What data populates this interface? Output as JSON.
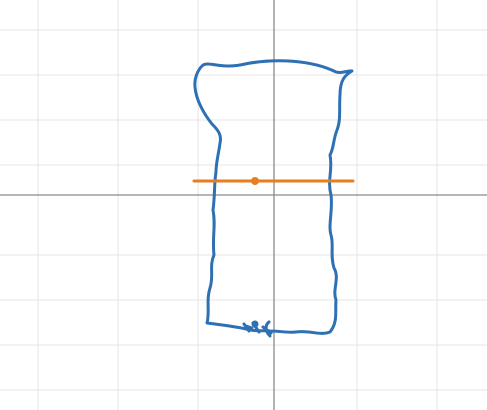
{
  "graph": {
    "background": "#ffffff",
    "grid_color": "#e6e6e6",
    "axis_color": "#8a8a8a",
    "grid": true,
    "axes_visible": true,
    "x_axis_labels": [],
    "y_axis_labels": []
  },
  "expressions": [
    {
      "id": "freehand-outline",
      "kind": "freehand-curve",
      "color": "#2d70b3"
    },
    {
      "id": "horizontal-segment",
      "kind": "line-segment",
      "color": "#e67e22",
      "has_point": true
    }
  ]
}
